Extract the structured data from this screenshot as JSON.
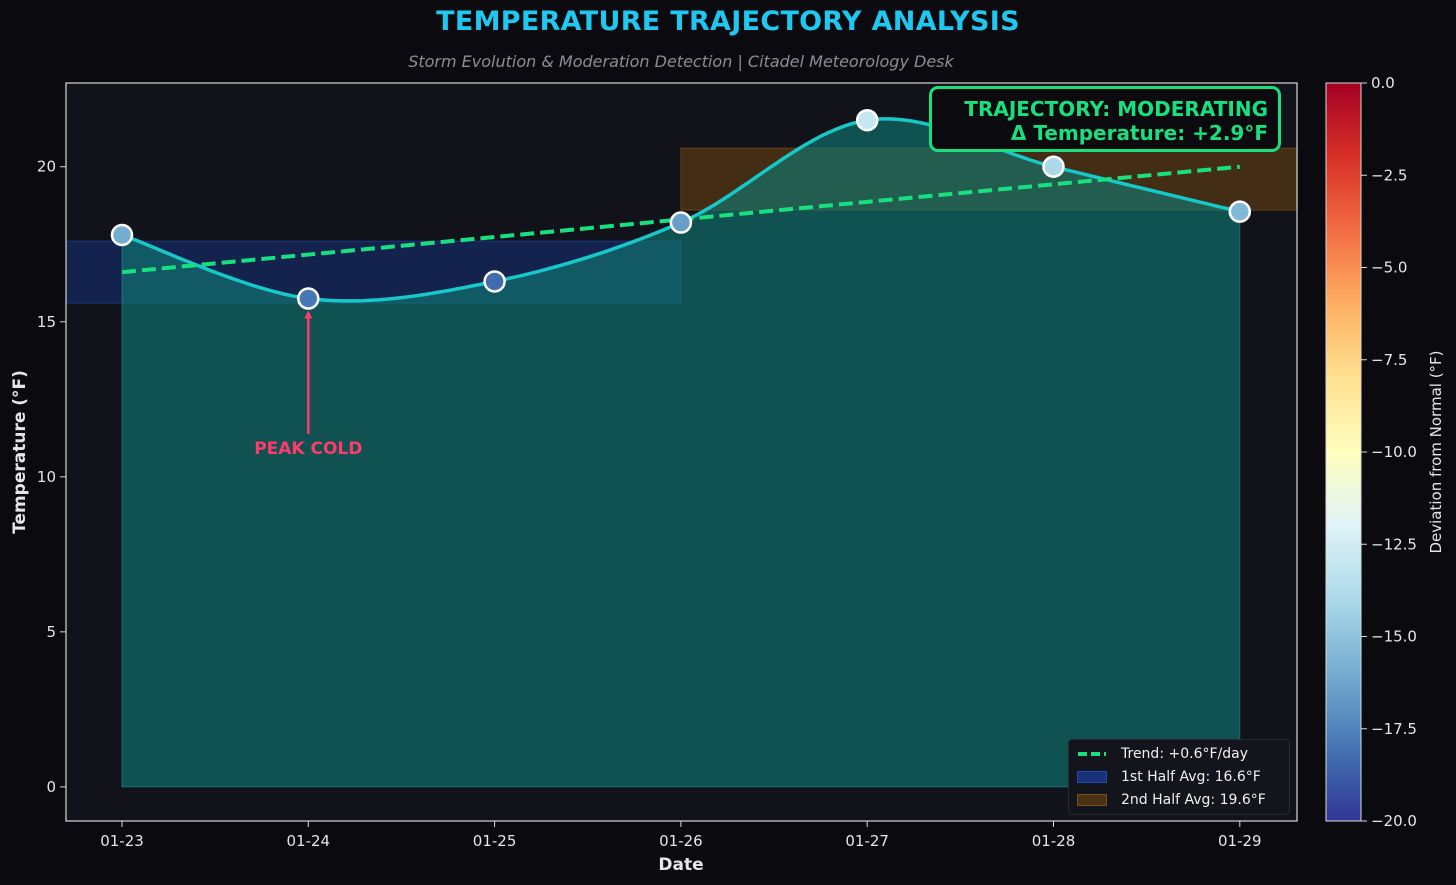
{
  "header": {
    "title": "TEMPERATURE TRAJECTORY ANALYSIS",
    "subtitle": "Storm Evolution & Moderation Detection | Citadel Meteorology Desk"
  },
  "status_box": {
    "line1": "TRAJECTORY: MODERATING",
    "line2": "Δ Temperature: +2.9°F",
    "color": "#18e07f"
  },
  "annotation": {
    "text": "PEAK COLD",
    "color": "#ff3b6b"
  },
  "legend": {
    "trend": "Trend: +0.6°F/day",
    "first_half": "1st Half Avg: 16.6°F",
    "second_half": "2nd Half Avg: 19.6°F"
  },
  "chart_data": {
    "type": "line",
    "title": "TEMPERATURE TRAJECTORY ANALYSIS",
    "subtitle": "Storm Evolution & Moderation Detection | Citadel Meteorology Desk",
    "xlabel": "Date",
    "ylabel": "Temperature (°F)",
    "categories": [
      "01-23",
      "01-24",
      "01-25",
      "01-26",
      "01-27",
      "01-28",
      "01-29"
    ],
    "series": [
      {
        "values": [
          17.8,
          15.75,
          16.3,
          18.2,
          21.5,
          20.0,
          18.55
        ]
      },
      {
        "name": "Trend: +0.6°F/day",
        "values": [
          16.6,
          17.17,
          17.73,
          18.3,
          18.87,
          19.43,
          20.0
        ],
        "style": "dashed"
      }
    ],
    "deviation_from_normal": [
      -16.0,
      -17.9,
      -18.3,
      -16.5,
      -13.0,
      -14.0,
      -15.5
    ],
    "bands": [
      {
        "name": "1st Half Avg: 16.6°F",
        "value": 16.6,
        "x_range": [
          "01-23",
          "01-26"
        ],
        "color": "#1a3a8c"
      },
      {
        "name": "2nd Half Avg: 19.6°F",
        "value": 19.6,
        "x_range": [
          "01-26",
          "01-29"
        ],
        "color": "#8a5a14"
      }
    ],
    "ylim": [
      -1.1,
      22.7
    ],
    "yticks": [
      0,
      5,
      10,
      15,
      20
    ],
    "colorbar": {
      "label": "Deviation from Normal (°F)",
      "range": [
        -20.0,
        0.0
      ],
      "ticks": [
        "0.0",
        "−2.5",
        "−5.0",
        "−7.5",
        "−10.0",
        "−12.5",
        "−15.0",
        "−17.5",
        "−20.0"
      ],
      "colormap": "RdYlBu_r"
    },
    "grid": false,
    "legend_position": "bottom-right",
    "colors": {
      "line": "#17c8c8",
      "trend": "#18e07f",
      "fill": "#0c5a5a",
      "annotation": "#ff3b6b"
    }
  }
}
